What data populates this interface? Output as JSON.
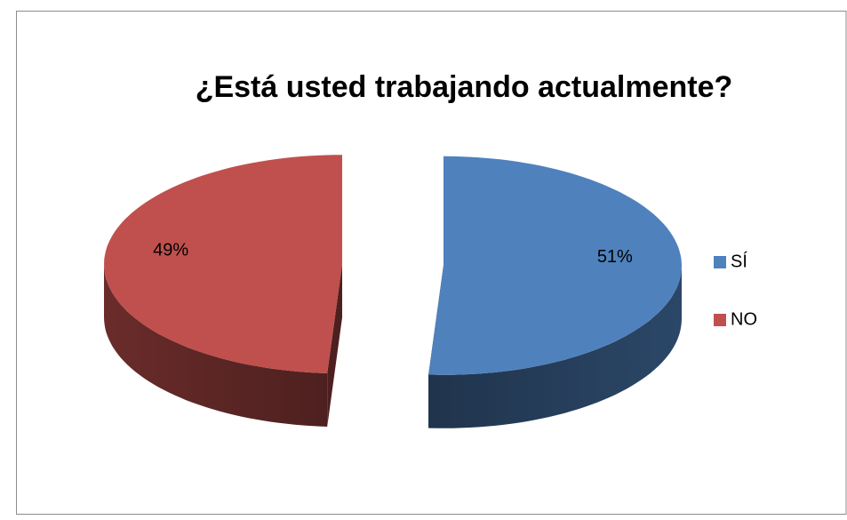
{
  "chart_data": {
    "type": "pie",
    "title": "¿Está usted trabajando actualmente?",
    "categories": [
      "SÍ",
      "NO"
    ],
    "values": [
      51,
      49
    ],
    "value_labels": [
      "51%",
      "49%"
    ],
    "colors": [
      "#4f81bd",
      "#c0504d"
    ],
    "legend": "right"
  }
}
